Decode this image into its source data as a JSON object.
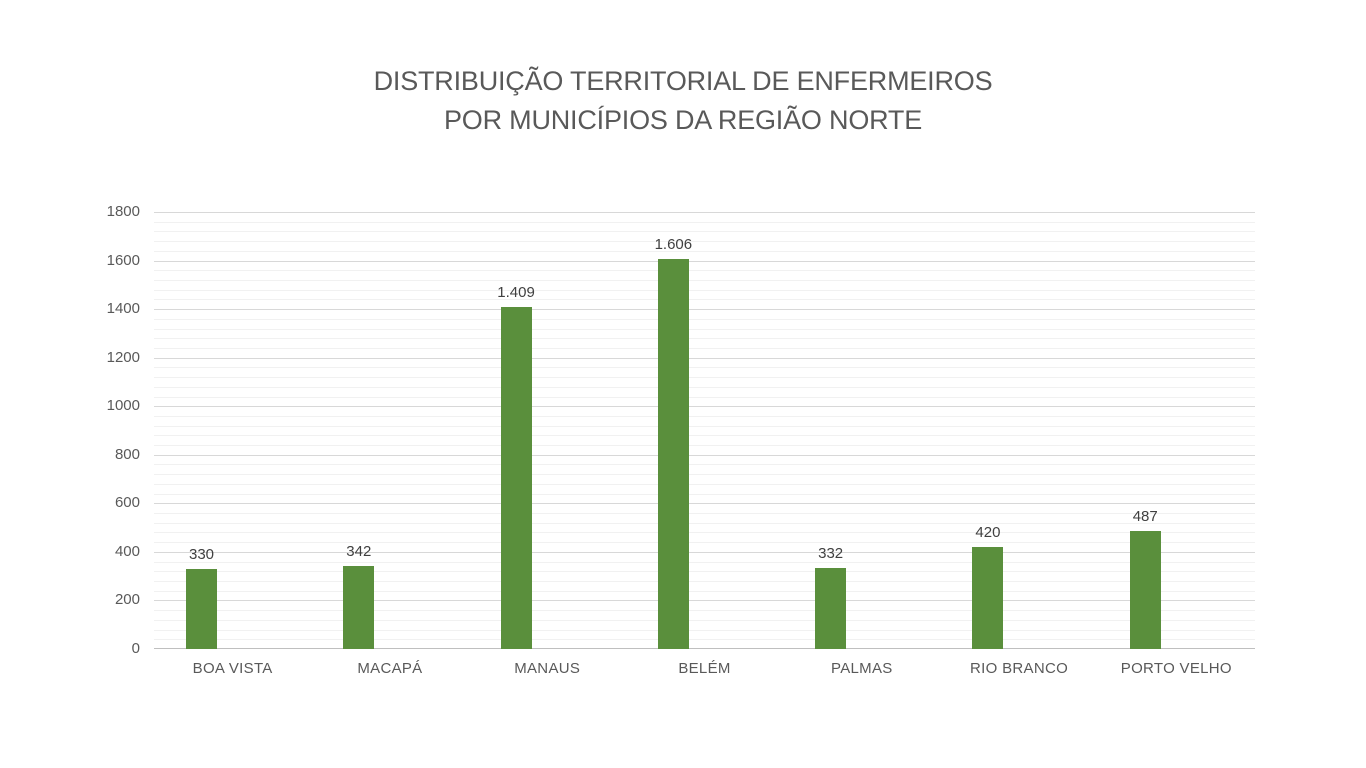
{
  "title": {
    "line1": "DISTRIBUIÇÃO TERRITORIAL DE ENFERMEIROS",
    "line2": "POR MUNICÍPIOS DA REGIÃO NORTE"
  },
  "colors": {
    "bar": "#5A8F3C",
    "title_text": "#595959",
    "axis_text": "#595959",
    "data_label_text": "#404040",
    "gridline_major": "#D8D8D8",
    "gridline_minor": "#F1F1F1",
    "axis_line": "#BFBFBF",
    "background": "#FFFFFF"
  },
  "chart_data": {
    "type": "bar",
    "title": "DISTRIBUIÇÃO TERRITORIAL DE ENFERMEIROS POR MUNICÍPIOS DA REGIÃO NORTE",
    "categories": [
      "BOA VISTA",
      "MACAPÁ",
      "MANAUS",
      "BELÉM",
      "PALMAS",
      "RIO BRANCO",
      "PORTO VELHO"
    ],
    "values": [
      330,
      342,
      1409,
      1606,
      332,
      420,
      487
    ],
    "data_labels": [
      "330",
      "342",
      "1.409",
      "1.606",
      "332",
      "420",
      "487"
    ],
    "xlabel": "",
    "ylabel": "",
    "ylim": [
      0,
      1800
    ],
    "y_ticks": [
      0,
      200,
      400,
      600,
      800,
      1000,
      1200,
      1400,
      1600,
      1800
    ],
    "y_major_unit": 200,
    "y_minor_unit": 40,
    "grid": "horizontal major+minor, on",
    "legend": "none"
  }
}
